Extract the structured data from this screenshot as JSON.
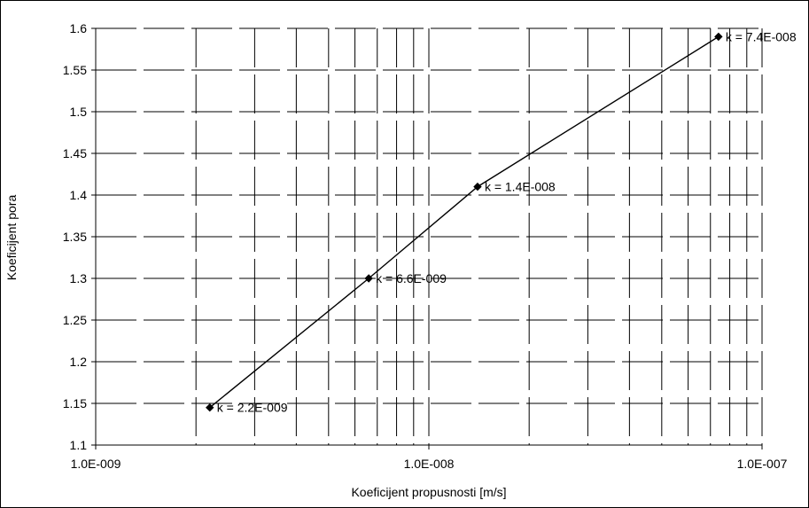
{
  "chart_data": {
    "type": "line",
    "xscale": "log",
    "xlim": [
      1e-09,
      1e-07
    ],
    "ylim": [
      1.1,
      1.6
    ],
    "xlabel": "Koeficijent propusnosti [m/s]",
    "ylabel": "Koeficijent pora",
    "grid": true,
    "x_tick_labels": [
      "1.0E-009",
      "1.0E-008",
      "1.0E-007"
    ],
    "y_tick_labels": [
      "1.1",
      "1.15",
      "1.2",
      "1.25",
      "1.3",
      "1.35",
      "1.4",
      "1.45",
      "1.5",
      "1.55",
      "1.6"
    ],
    "series": [
      {
        "x": [
          2.2e-09,
          6.6e-09,
          1.4e-08,
          7.4e-08
        ],
        "y": [
          1.145,
          1.3,
          1.41,
          1.59
        ],
        "labels": [
          "k = 2.2E-009",
          "k = 6.6E-009",
          "k = 1.4E-008",
          "k = 7.4E-008"
        ]
      }
    ]
  }
}
